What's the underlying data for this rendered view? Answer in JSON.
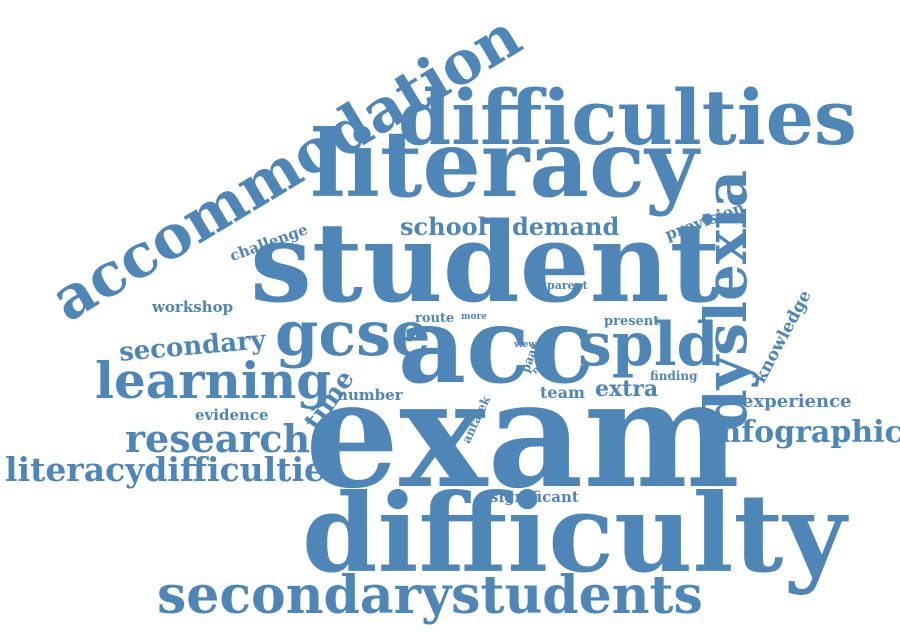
{
  "cloud": {
    "color": "#4f86b8",
    "words": [
      "accommodation",
      "difficulties",
      "literacy",
      "student",
      "exam",
      "acc",
      "difficulty",
      "secondarystudents",
      "dyslexia",
      "gcse",
      "spld",
      "learning",
      "research",
      "literacydifficulties",
      "infographic",
      "secondary",
      "school",
      "demand",
      "provision",
      "challenge",
      "workshop",
      "knowledge",
      "experience",
      "extra",
      "team",
      "time",
      "evidence",
      "number",
      "route",
      "more",
      "present",
      "parent",
      "paas",
      "view",
      "need",
      "finding",
      "antalek",
      "significant"
    ]
  }
}
